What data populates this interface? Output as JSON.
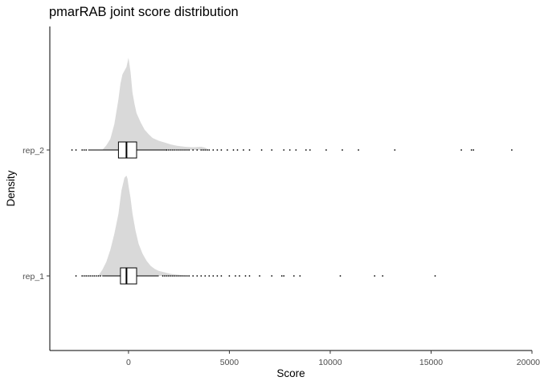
{
  "chart_data": {
    "type": "violin",
    "title": "pmarRAB joint score distribution",
    "xlabel": "Score",
    "ylabel": "Density",
    "xlim": [
      -3900,
      20000
    ],
    "x_ticks": [
      0,
      5000,
      10000,
      15000,
      20000
    ],
    "x_tick_labels": [
      "0",
      "5000",
      "10000",
      "15000",
      "20000"
    ],
    "fill_color": "#d9d9d9",
    "box_color": "#000000",
    "grid": false,
    "legend": "none",
    "categories": [
      "rep_1",
      "rep_2"
    ],
    "series": [
      {
        "name": "rep_1",
        "density": {
          "x": [
            -1500,
            -1300,
            -1100,
            -900,
            -700,
            -500,
            -350,
            -200,
            -100,
            -50,
            0,
            100,
            200,
            350,
            500,
            700,
            900,
            1100,
            1300,
            1500,
            1700,
            1900,
            2100,
            2300,
            2600,
            3000
          ],
          "y": [
            0,
            0.06,
            0.14,
            0.26,
            0.42,
            0.62,
            0.85,
            0.98,
            1.0,
            0.97,
            0.9,
            0.78,
            0.62,
            0.45,
            0.32,
            0.22,
            0.15,
            0.1,
            0.07,
            0.05,
            0.04,
            0.03,
            0.02,
            0.015,
            0.008,
            0
          ]
        },
        "box": {
          "q1": -400,
          "median": -100,
          "q3": 400,
          "whisker_low": -1300,
          "whisker_high": 1500
        },
        "outliers": [
          -2600,
          -2300,
          -2200,
          -2100,
          -2000,
          -1900,
          -1800,
          -1700,
          -1600,
          -1500,
          -1400,
          1700,
          1800,
          1900,
          2000,
          2100,
          2200,
          2300,
          2400,
          2500,
          2600,
          2700,
          2800,
          2900,
          3000,
          3200,
          3400,
          3600,
          3800,
          4000,
          4200,
          4400,
          4600,
          5000,
          5300,
          5500,
          5800,
          6000,
          6500,
          7100,
          7600,
          7700,
          8200,
          8500,
          10500,
          12200,
          12600,
          15200
        ]
      },
      {
        "name": "rep_2",
        "density": {
          "x": [
            -1300,
            -1100,
            -900,
            -700,
            -500,
            -400,
            -300,
            -200,
            -100,
            0,
            100,
            200,
            300,
            400,
            600,
            800,
            1000,
            1200,
            1500,
            1800,
            2100,
            2400,
            2800,
            3200,
            3600,
            3800,
            4000
          ],
          "y": [
            0,
            0.05,
            0.12,
            0.28,
            0.55,
            0.72,
            0.82,
            0.86,
            0.9,
            1.0,
            0.85,
            0.62,
            0.5,
            0.4,
            0.3,
            0.22,
            0.17,
            0.13,
            0.1,
            0.08,
            0.06,
            0.045,
            0.035,
            0.03,
            0.035,
            0.025,
            0
          ]
        },
        "box": {
          "q1": -500,
          "median": -100,
          "q3": 400,
          "whisker_low": -2000,
          "whisker_high": 1900
        },
        "outliers": [
          -2800,
          -2600,
          -2300,
          -2200,
          -2100,
          1900,
          2000,
          2100,
          2200,
          2300,
          2400,
          2500,
          2600,
          2700,
          2800,
          2900,
          3000,
          3200,
          3400,
          3600,
          3700,
          3800,
          3900,
          4000,
          4200,
          4400,
          4600,
          4900,
          5200,
          5400,
          5700,
          6000,
          6600,
          7100,
          7700,
          8000,
          8300,
          8800,
          9000,
          9800,
          10600,
          11400,
          13200,
          16500,
          17000,
          17100,
          19000
        ]
      }
    ]
  }
}
